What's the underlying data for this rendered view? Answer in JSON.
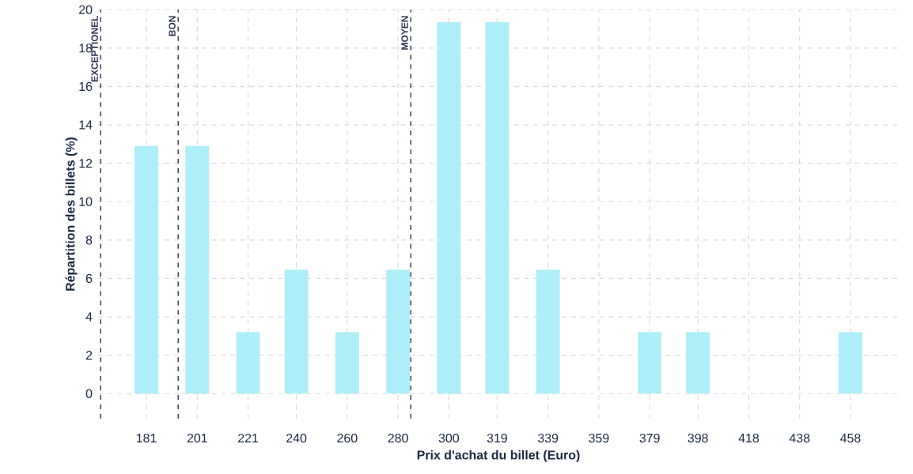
{
  "chart_data": {
    "type": "bar",
    "xlabel": "Prix d'achat du billet (Euro)",
    "ylabel": "Répartition des billets (%)",
    "x": [
      181,
      201,
      221,
      240,
      260,
      280,
      300,
      319,
      339,
      359,
      379,
      398,
      418,
      438,
      458
    ],
    "values": [
      12.9,
      12.9,
      3.2,
      6.45,
      3.2,
      6.45,
      19.35,
      19.35,
      6.45,
      0,
      3.2,
      3.2,
      0,
      0,
      3.2
    ],
    "color": "#aeeef8",
    "xlim": [
      162,
      477
    ],
    "ylim": [
      -1.3,
      20
    ],
    "xticks": [
      181,
      201,
      221,
      240,
      260,
      280,
      300,
      319,
      339,
      359,
      379,
      398,
      418,
      438,
      458
    ],
    "yticks": [
      0,
      2,
      4,
      6,
      8,
      10,
      12,
      14,
      16,
      18,
      20
    ],
    "grid": true,
    "ref_lines": [
      {
        "axis": "x",
        "value": 163,
        "label": "EXCEPTIONEL",
        "color": "#2b3350",
        "line_style": "dashed"
      },
      {
        "axis": "x",
        "value": 193.5,
        "label": "BON",
        "color": "#2b3350",
        "line_style": "dashed"
      },
      {
        "axis": "x",
        "value": 285,
        "label": "MOYEN",
        "color": "#2b3350",
        "line_style": "dashed"
      }
    ]
  }
}
